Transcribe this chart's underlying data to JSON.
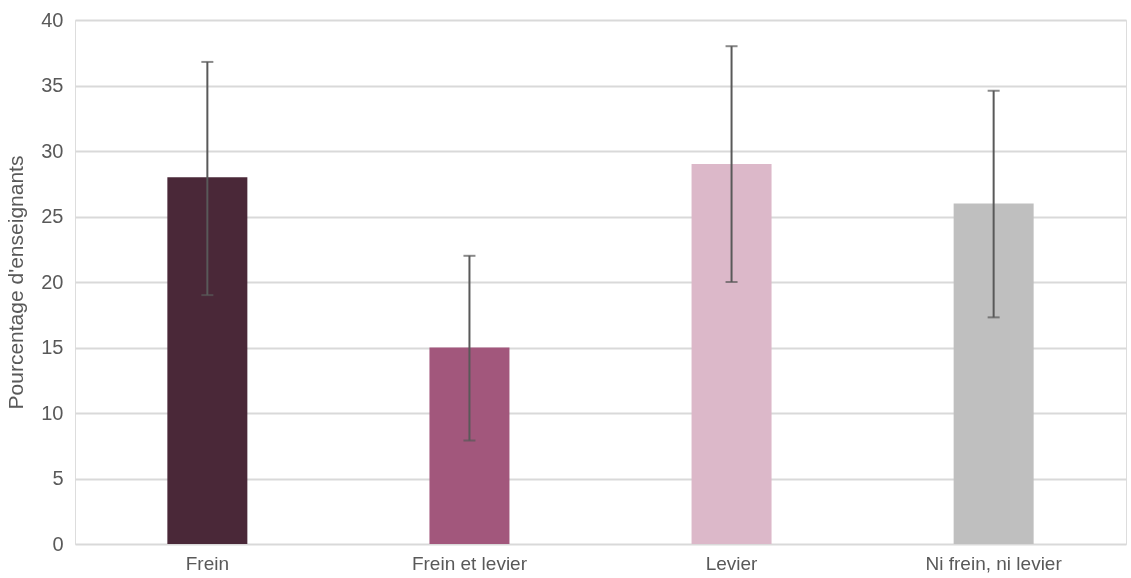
{
  "chart_data": {
    "type": "bar",
    "ylabel": "Pourcentage d'enseignants",
    "categories": [
      "Frein",
      "Frein et levier",
      "Levier",
      "Ni frein, ni levier"
    ],
    "values": [
      28,
      15,
      29,
      26
    ],
    "colors": [
      "#4a2838",
      "#a2577c",
      "#dcb8c9",
      "#bfbfbf"
    ],
    "errors": [
      [
        19,
        36.8
      ],
      [
        7.9,
        22
      ],
      [
        20,
        38
      ],
      [
        17.3,
        34.6
      ]
    ],
    "ylim": [
      0,
      40
    ],
    "yticks": [
      0,
      5,
      10,
      15,
      20,
      25,
      30,
      35,
      40
    ],
    "grid": "y"
  }
}
